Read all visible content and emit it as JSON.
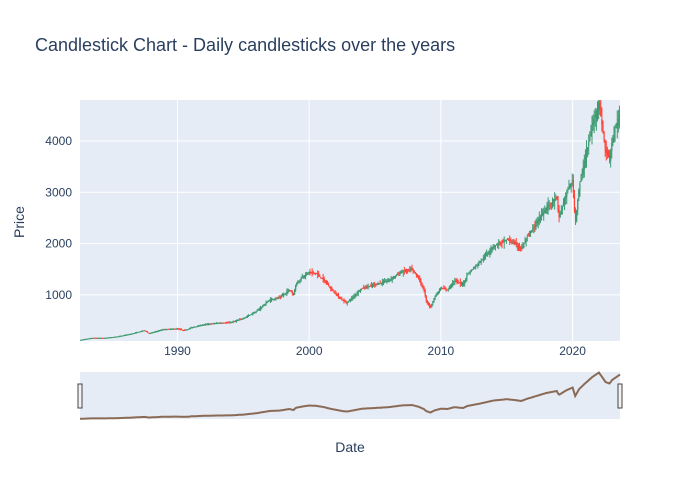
{
  "chart_data": {
    "type": "candlestick",
    "title": "Candlestick Chart - Daily candlesticks over the years",
    "xlabel": "Date",
    "ylabel": "Price",
    "xlim": [
      1982.6,
      2023.6
    ],
    "ylim": [
      100,
      4800
    ],
    "x_ticks": [
      1990,
      2000,
      2010,
      2020
    ],
    "x_tick_labels": [
      "1990",
      "2000",
      "2010",
      "2020"
    ],
    "y_ticks": [
      1000,
      2000,
      3000,
      4000
    ],
    "y_tick_labels": [
      "1000",
      "2000",
      "3000",
      "4000"
    ],
    "grid": true,
    "legend": false,
    "rangeslider": true,
    "increasing_color": "#3D9970",
    "decreasing_color": "#FF4136",
    "plot_bg": "#E5ECF6",
    "series": [
      {
        "x": [
          1982.6,
          1983.5,
          1984.5,
          1985.5,
          1986.5,
          1987.5,
          1987.8,
          1988.0,
          1989.0,
          1990.0,
          1990.5,
          1990.8,
          1991.0,
          1992.0,
          1993.0,
          1994.0,
          1995.0,
          1996.0,
          1997.0,
          1997.8,
          1998.5,
          1998.8,
          1999.0,
          1999.5,
          2000.0,
          2000.5,
          2001.0,
          2001.7,
          2002.5,
          2002.8,
          2003.0,
          2003.5,
          2004.0,
          2005.0,
          2006.0,
          2007.0,
          2007.8,
          2008.3,
          2008.7,
          2008.9,
          2009.2,
          2009.5,
          2010.0,
          2010.5,
          2011.0,
          2011.7,
          2012.0,
          2013.0,
          2014.0,
          2015.0,
          2015.6,
          2016.1,
          2016.5,
          2017.0,
          2018.0,
          2018.8,
          2018.95,
          2019.5,
          2020.0,
          2020.2,
          2020.5,
          2020.9,
          2021.5,
          2022.0,
          2022.5,
          2022.8,
          2023.0,
          2023.6
        ],
        "close": [
          120,
          160,
          160,
          190,
          240,
          310,
          250,
          260,
          330,
          340,
          310,
          330,
          360,
          420,
          450,
          460,
          540,
          680,
          900,
          950,
          1100,
          1000,
          1220,
          1350,
          1450,
          1420,
          1320,
          1100,
          900,
          850,
          880,
          1000,
          1130,
          1200,
          1280,
          1450,
          1500,
          1330,
          1100,
          880,
          750,
          950,
          1130,
          1100,
          1280,
          1200,
          1400,
          1650,
          1950,
          2080,
          2000,
          1900,
          2100,
          2300,
          2700,
          2900,
          2500,
          2950,
          3250,
          2400,
          3100,
          3600,
          4300,
          4750,
          3800,
          3650,
          4000,
          4550
        ]
      }
    ],
    "label_lines": [
      "label_line"
    ]
  }
}
